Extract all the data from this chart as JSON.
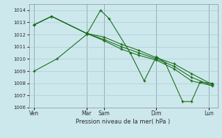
{
  "background_color": "#cce8ec",
  "grid_color": "#aacdd4",
  "line_color": "#1a6b1a",
  "xlabel": "Pression niveau de la mer( hPa )",
  "ylim": [
    1006,
    1014.5
  ],
  "yticks": [
    1006,
    1007,
    1008,
    1009,
    1010,
    1011,
    1012,
    1013,
    1014
  ],
  "xtick_labels": [
    "Ven",
    "Mar",
    "Sam",
    "Dim",
    "Lun"
  ],
  "xtick_positions": [
    0.0,
    3.0,
    4.0,
    7.0,
    10.0
  ],
  "vlines": [
    0.0,
    3.0,
    4.0,
    7.0,
    10.0
  ],
  "xlim": [
    -0.3,
    10.5
  ],
  "series": [
    {
      "x": [
        0.0,
        1.3,
        3.0,
        3.8,
        4.3,
        5.5,
        6.3,
        7.0,
        7.5,
        8.5,
        9.0,
        9.5,
        10.2
      ],
      "y": [
        1009.0,
        1010.0,
        1012.0,
        1014.0,
        1013.3,
        1010.5,
        1008.2,
        1010.2,
        1009.7,
        1006.5,
        1006.5,
        1008.1,
        1008.0
      ]
    },
    {
      "x": [
        0.0,
        1.0,
        3.0,
        4.0,
        5.0,
        6.0,
        7.0,
        8.0,
        9.0,
        10.2
      ],
      "y": [
        1012.8,
        1013.5,
        1012.1,
        1011.8,
        1011.2,
        1010.7,
        1010.1,
        1009.6,
        1008.8,
        1007.9
      ]
    },
    {
      "x": [
        0.0,
        1.0,
        3.0,
        4.0,
        5.0,
        6.0,
        7.0,
        8.0,
        9.0,
        10.2
      ],
      "y": [
        1012.8,
        1013.5,
        1012.1,
        1011.6,
        1011.0,
        1010.5,
        1010.0,
        1009.4,
        1008.5,
        1007.8
      ]
    },
    {
      "x": [
        0.0,
        1.0,
        3.0,
        4.0,
        5.0,
        6.0,
        7.0,
        8.0,
        9.0,
        10.2
      ],
      "y": [
        1012.8,
        1013.5,
        1012.1,
        1011.5,
        1010.8,
        1010.3,
        1009.9,
        1009.2,
        1008.2,
        1007.8
      ]
    }
  ]
}
